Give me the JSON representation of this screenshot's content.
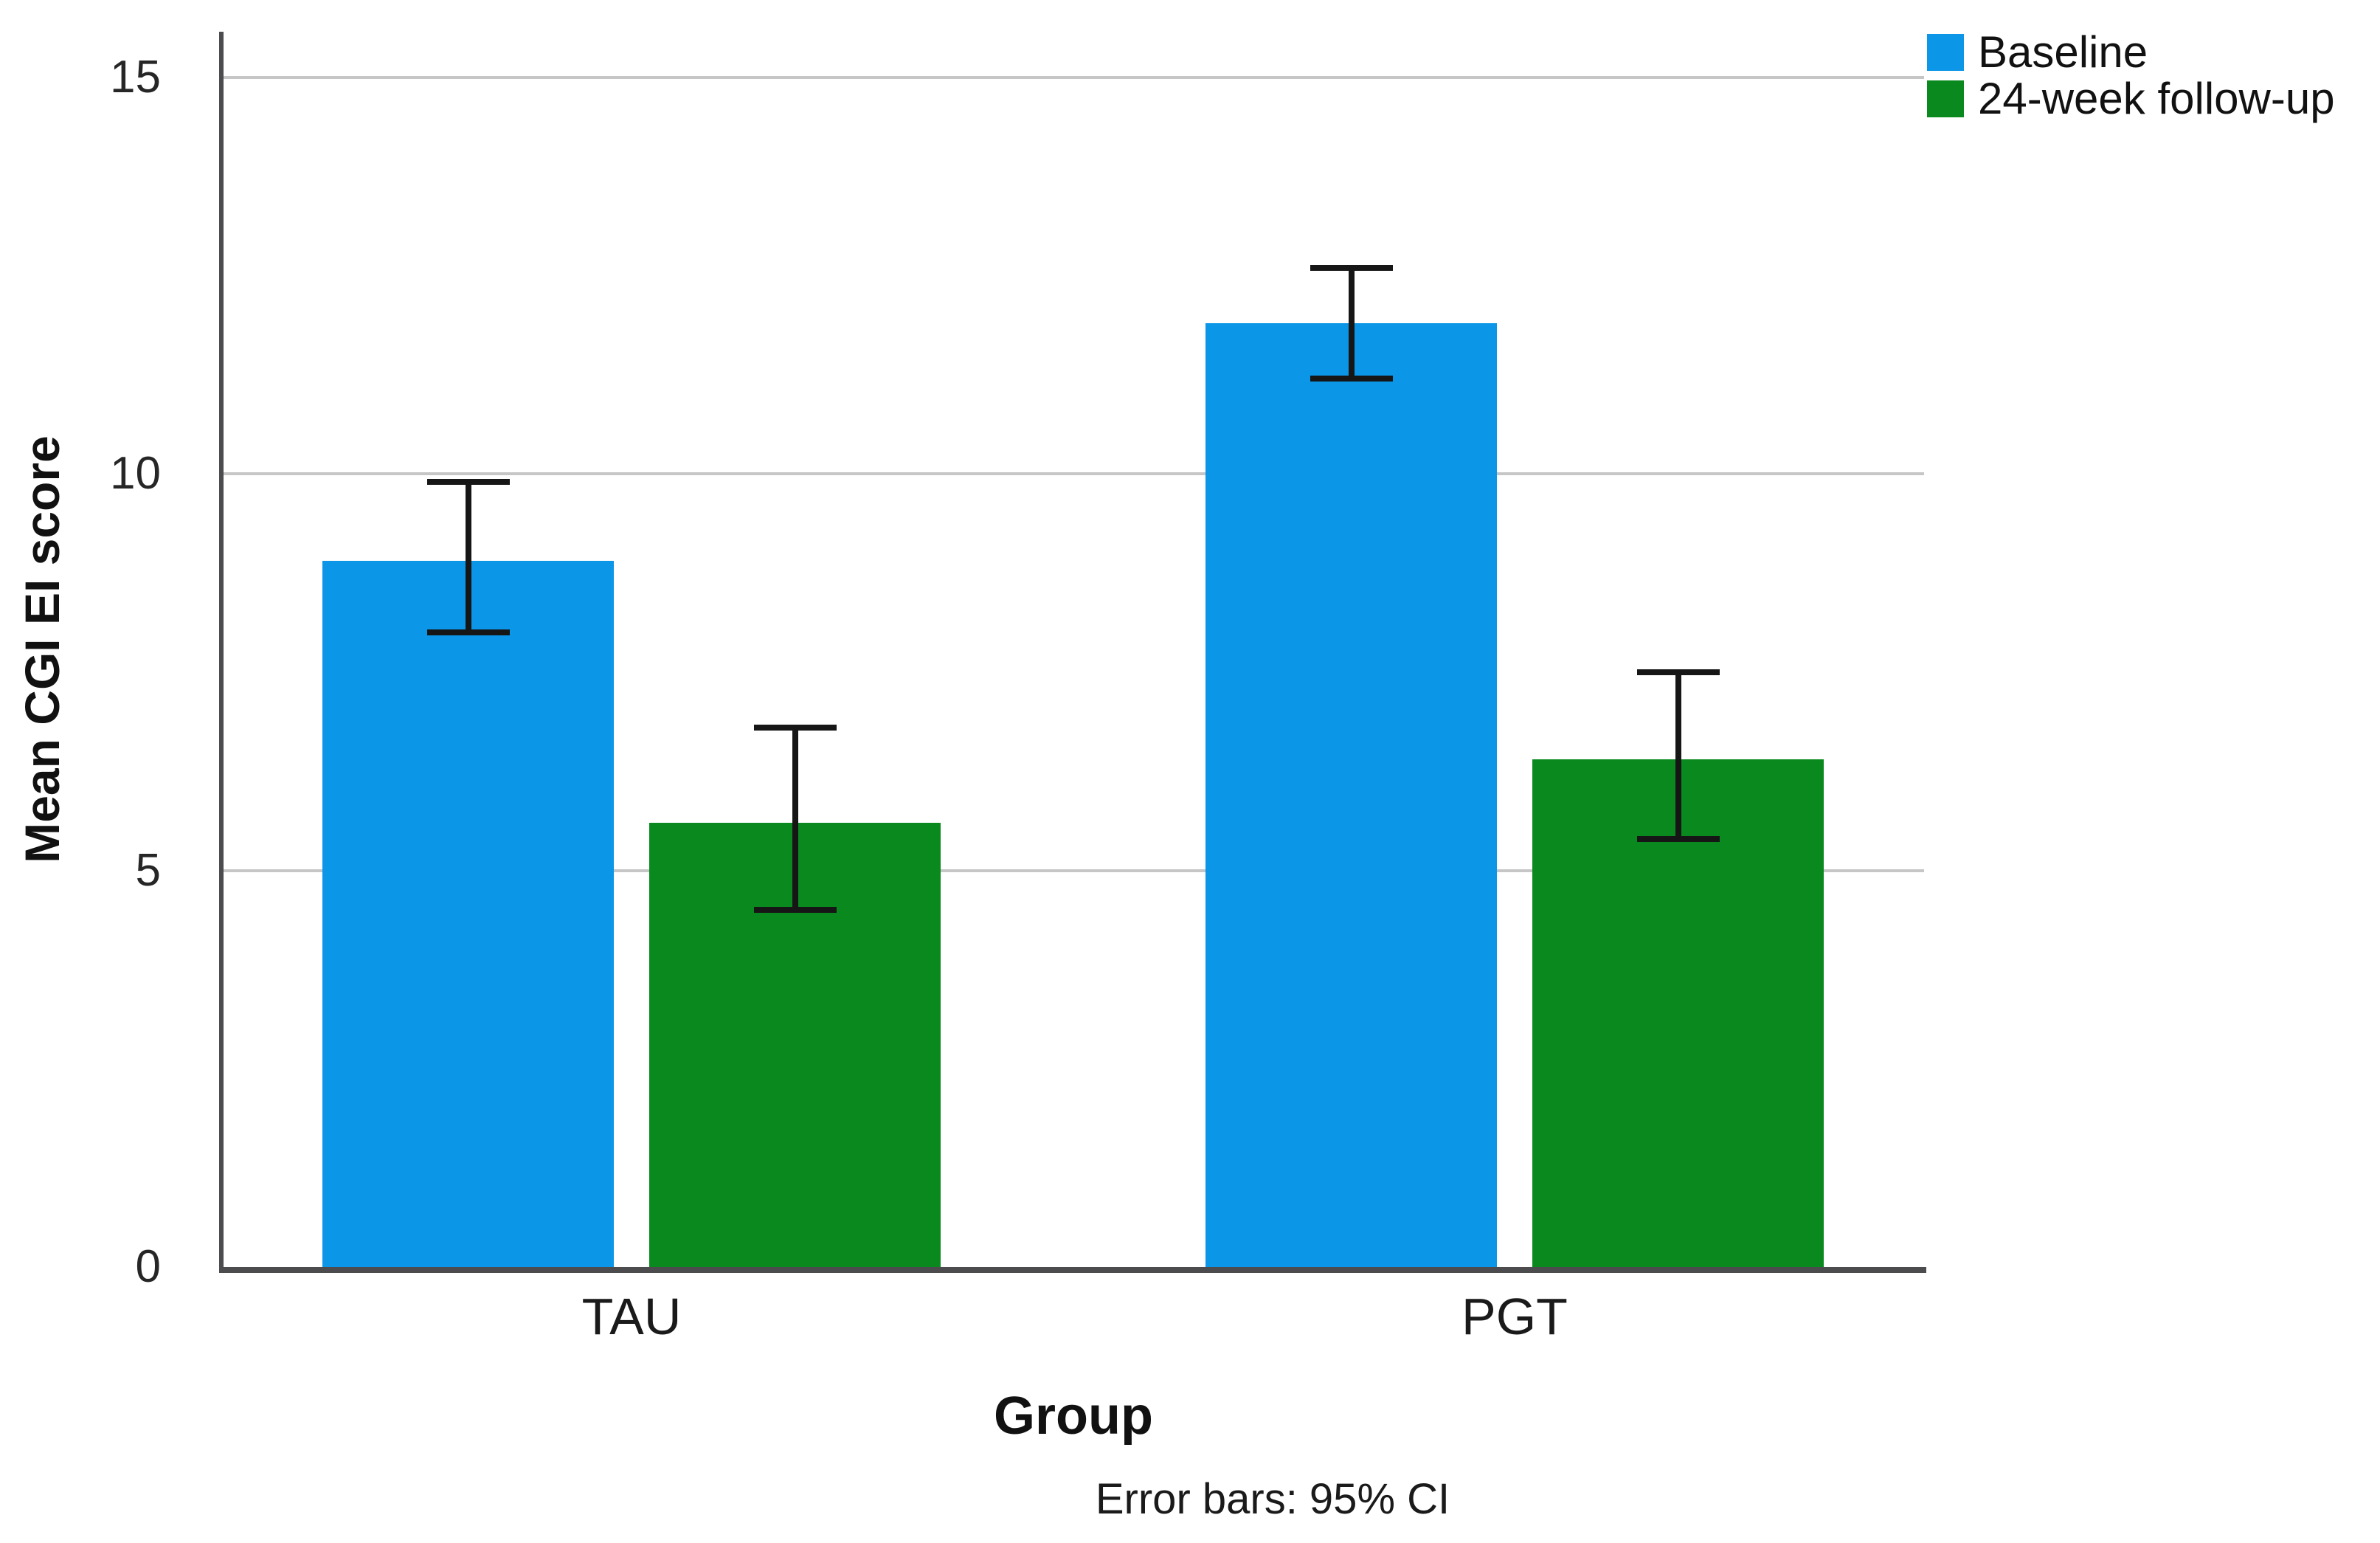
{
  "chart_data": {
    "type": "bar",
    "xlabel": "Group",
    "ylabel": "Mean CGI EI score",
    "note": "Error bars: 95% CI",
    "categories": [
      "TAU",
      "PGT"
    ],
    "series": [
      {
        "name": "Baseline",
        "color": "#0B96E8",
        "values": [
          8.9,
          11.9
        ],
        "ci_low": [
          8.0,
          11.2
        ],
        "ci_high": [
          9.9,
          12.6
        ]
      },
      {
        "name": "24-week follow-up",
        "color": "#0A8A1E",
        "values": [
          5.6,
          6.4
        ],
        "ci_low": [
          4.5,
          5.4
        ],
        "ci_high": [
          6.8,
          7.5
        ]
      }
    ],
    "ylim": [
      0,
      15
    ],
    "yticks": [
      0,
      5,
      10,
      15
    ],
    "grid": true,
    "legend_position": "top-right",
    "error_bar_color": "#161616",
    "axis_color": "#4c4c4e",
    "gridline_color": "#c6c6c6",
    "bar_background": "#ffffff"
  }
}
